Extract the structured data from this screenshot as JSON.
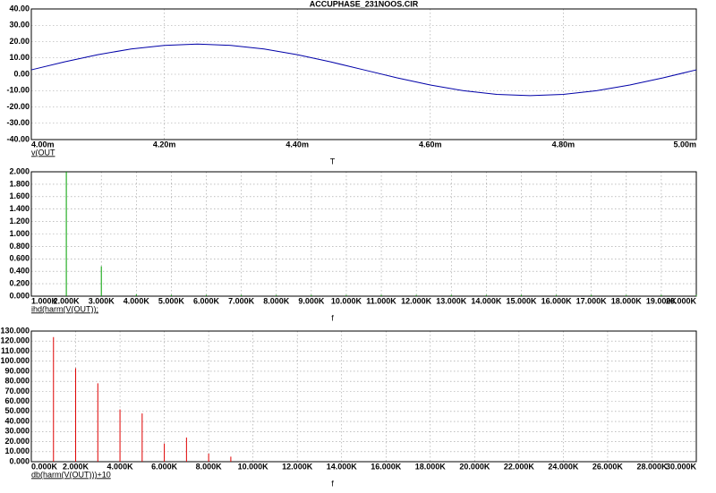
{
  "chart_data": [
    {
      "type": "line",
      "title": "ACCUPHASE_231NOOS.CIR",
      "xlabel": "T",
      "x": [
        0.004,
        0.00405,
        0.0041,
        0.00415,
        0.0042,
        0.00425,
        0.0043,
        0.00435,
        0.0044,
        0.00445,
        0.0045,
        0.00455,
        0.0046,
        0.00465,
        0.0047,
        0.00475,
        0.0048,
        0.00485,
        0.0049,
        0.00495,
        0.005
      ],
      "series": [
        {
          "name": "v(OUT",
          "color": "#0000a8",
          "values": [
            2.7,
            7.6,
            12.0,
            15.5,
            17.7,
            18.5,
            17.7,
            15.5,
            12.0,
            7.6,
            2.7,
            -2.2,
            -6.6,
            -10.1,
            -12.3,
            -13.1,
            -12.3,
            -10.1,
            -6.6,
            -2.2,
            2.7
          ]
        }
      ],
      "xlim": [
        0.004,
        0.005
      ],
      "xticks": [
        {
          "value": 0.004,
          "label": "4.00m"
        },
        {
          "value": 0.0042,
          "label": "4.20m"
        },
        {
          "value": 0.0044,
          "label": "4.40m"
        },
        {
          "value": 0.0046,
          "label": "4.60m"
        },
        {
          "value": 0.0048,
          "label": "4.80m"
        },
        {
          "value": 0.005,
          "label": "5.00m"
        }
      ],
      "ylim": [
        -40,
        40
      ],
      "yticks": [
        {
          "value": -40,
          "label": "-40.00"
        },
        {
          "value": -30,
          "label": "-30.00"
        },
        {
          "value": -20,
          "label": "-20.00"
        },
        {
          "value": -10,
          "label": "-10.00"
        },
        {
          "value": 0,
          "label": "0.00"
        },
        {
          "value": 10,
          "label": "10.00"
        },
        {
          "value": 20,
          "label": "20.00"
        },
        {
          "value": 30,
          "label": "30.00"
        },
        {
          "value": 40,
          "label": "40.00"
        }
      ],
      "grid": true
    },
    {
      "type": "stem",
      "xlabel": "f",
      "x": [
        2000,
        3000,
        4000,
        5000,
        6000,
        7000,
        8000,
        9000,
        10000,
        11000,
        12000,
        13000,
        14000,
        15000,
        16000,
        17000,
        18000,
        19000,
        20000
      ],
      "series": [
        {
          "name": "ihd(harm(V(OUT));",
          "color": "#00a000",
          "values": [
            2.0,
            0.48,
            0.03,
            0.02,
            0.02,
            0.02,
            0.02,
            0.02,
            0.02,
            0.02,
            0.02,
            0.02,
            0.02,
            0.02,
            0.02,
            0.02,
            0.02,
            0.02,
            0.02
          ]
        }
      ],
      "xlim": [
        1000,
        20000
      ],
      "xticks": [
        {
          "value": 1000,
          "label": "1.000K"
        },
        {
          "value": 2000,
          "label": "2.000K"
        },
        {
          "value": 3000,
          "label": "3.000K"
        },
        {
          "value": 4000,
          "label": "4.000K"
        },
        {
          "value": 5000,
          "label": "5.000K"
        },
        {
          "value": 6000,
          "label": "6.000K"
        },
        {
          "value": 7000,
          "label": "7.000K"
        },
        {
          "value": 8000,
          "label": "8.000K"
        },
        {
          "value": 9000,
          "label": "9.000K"
        },
        {
          "value": 10000,
          "label": "10.000K"
        },
        {
          "value": 11000,
          "label": "11.000K"
        },
        {
          "value": 12000,
          "label": "12.000K"
        },
        {
          "value": 13000,
          "label": "13.000K"
        },
        {
          "value": 14000,
          "label": "14.000K"
        },
        {
          "value": 15000,
          "label": "15.000K"
        },
        {
          "value": 16000,
          "label": "16.000K"
        },
        {
          "value": 17000,
          "label": "17.000K"
        },
        {
          "value": 18000,
          "label": "18.000K"
        },
        {
          "value": 19000,
          "label": "19.000K"
        },
        {
          "value": 20000,
          "label": "20.000K"
        }
      ],
      "ylim": [
        0,
        2
      ],
      "yticks": [
        {
          "value": 0,
          "label": "0.000"
        },
        {
          "value": 0.2,
          "label": "0.200"
        },
        {
          "value": 0.4,
          "label": "0.400"
        },
        {
          "value": 0.6,
          "label": "0.600"
        },
        {
          "value": 0.8,
          "label": "0.800"
        },
        {
          "value": 1,
          "label": "1.000"
        },
        {
          "value": 1.2,
          "label": "1.200"
        },
        {
          "value": 1.4,
          "label": "1.400"
        },
        {
          "value": 1.6,
          "label": "1.600"
        },
        {
          "value": 1.8,
          "label": "1.800"
        },
        {
          "value": 2,
          "label": "2.000"
        }
      ],
      "grid": true
    },
    {
      "type": "stem",
      "xlabel": "f",
      "x": [
        1000,
        2000,
        3000,
        4000,
        5000,
        6000,
        7000,
        8000,
        9000
      ],
      "series": [
        {
          "name": "db(harm(V(OUT)))+10",
          "color": "#e00000",
          "values": [
            124,
            93,
            78,
            52,
            48,
            18,
            24,
            8,
            5
          ]
        }
      ],
      "xlim": [
        0,
        30000
      ],
      "xticks": [
        {
          "value": 0,
          "label": "0.000K"
        },
        {
          "value": 2000,
          "label": "2.000K"
        },
        {
          "value": 4000,
          "label": "4.000K"
        },
        {
          "value": 6000,
          "label": "6.000K"
        },
        {
          "value": 8000,
          "label": "8.000K"
        },
        {
          "value": 10000,
          "label": "10.000K"
        },
        {
          "value": 12000,
          "label": "12.000K"
        },
        {
          "value": 14000,
          "label": "14.000K"
        },
        {
          "value": 16000,
          "label": "16.000K"
        },
        {
          "value": 18000,
          "label": "18.000K"
        },
        {
          "value": 20000,
          "label": "20.000K"
        },
        {
          "value": 22000,
          "label": "22.000K"
        },
        {
          "value": 24000,
          "label": "24.000K"
        },
        {
          "value": 26000,
          "label": "26.000K"
        },
        {
          "value": 28000,
          "label": "28.000K"
        },
        {
          "value": 30000,
          "label": "30.000K"
        }
      ],
      "ylim": [
        0,
        130
      ],
      "yticks": [
        {
          "value": 0,
          "label": "0.000"
        },
        {
          "value": 10,
          "label": "10.000"
        },
        {
          "value": 20,
          "label": "20.000"
        },
        {
          "value": 30,
          "label": "30.000"
        },
        {
          "value": 40,
          "label": "40.000"
        },
        {
          "value": 50,
          "label": "50.000"
        },
        {
          "value": 60,
          "label": "60.000"
        },
        {
          "value": 70,
          "label": "70.000"
        },
        {
          "value": 80,
          "label": "80.000"
        },
        {
          "value": 90,
          "label": "90.000"
        },
        {
          "value": 100,
          "label": "100.000"
        },
        {
          "value": 110,
          "label": "110.000"
        },
        {
          "value": 120,
          "label": "120.000"
        },
        {
          "value": 130,
          "label": "130.000"
        }
      ],
      "grid": true
    }
  ]
}
